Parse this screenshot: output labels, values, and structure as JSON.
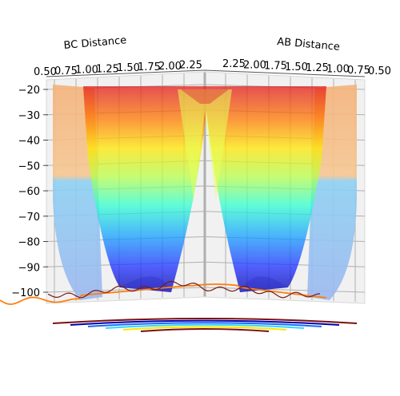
{
  "chart_data": {
    "type": "surface3d",
    "title": "",
    "xlabel": "BC Distance",
    "ylabel": "AB Distance",
    "zlabel": "",
    "x_ticks": [
      "0.50",
      "0.75",
      "1.00",
      "1.25",
      "1.50",
      "1.75",
      "2.00",
      "2.25"
    ],
    "y_ticks": [
      "2.25",
      "2.00",
      "1.75",
      "1.50",
      "1.25",
      "1.00",
      "0.75",
      "0.50"
    ],
    "z_ticks": [
      "−20",
      "−30",
      "−40",
      "−50",
      "−60",
      "−70",
      "−80",
      "−90",
      "−100"
    ],
    "x_range": [
      0.5,
      2.25
    ],
    "y_range": [
      0.5,
      2.25
    ],
    "z_range": [
      -102,
      -18
    ],
    "colormap": "jet",
    "surface_alpha": 0.45,
    "grid": true,
    "reaction_path": {
      "name": "",
      "color": "#ff7f0e"
    },
    "trajectory": {
      "name": "",
      "color": "#7a1a1a"
    },
    "contour_levels_drawn": 6
  }
}
